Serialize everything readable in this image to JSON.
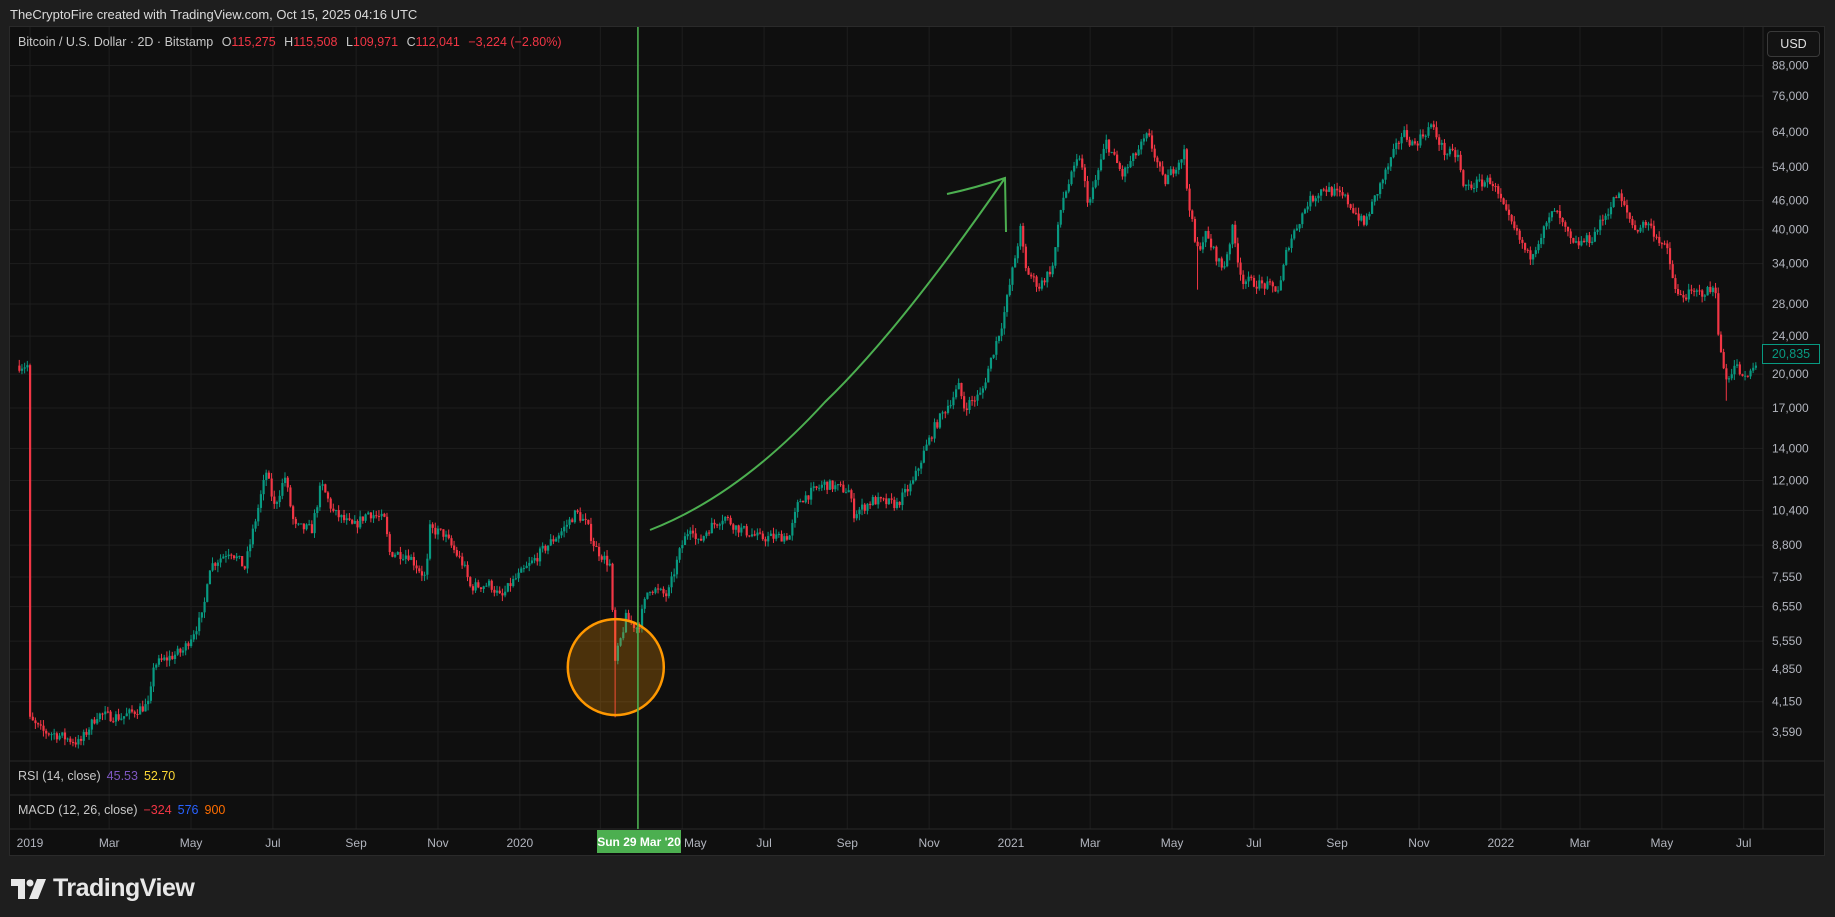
{
  "header": {
    "attribution": "TheCryptoFire created with TradingView.com, Oct 15, 2025 04:16 UTC"
  },
  "legend": {
    "symbol": "Bitcoin / U.S. Dollar · 2D · Bitstamp",
    "open_label": "O",
    "open": "115,275",
    "high_label": "H",
    "high": "115,508",
    "low_label": "L",
    "low": "109,971",
    "close_label": "C",
    "close": "112,041",
    "change": "−3,224 (−2.80%)"
  },
  "currency_button": "USD",
  "current_price_label": "20,835",
  "indicators": {
    "rsi": {
      "label": "RSI (14, close)",
      "v1": "45.53",
      "v2": "52.70"
    },
    "macd": {
      "label": "MACD (12, 26, close)",
      "v1": "−324",
      "v2": "576",
      "v3": "900"
    }
  },
  "crosshair_date": "Sun 29 Mar '20",
  "footer_logo": "TradingView",
  "colors": {
    "up": "#089981",
    "down": "#f23645",
    "annotation_green": "#4caf50",
    "circle": "#ff9800"
  },
  "chart_data": {
    "type": "candlestick",
    "title": "Bitcoin / U.S. Dollar · 2D · Bitstamp",
    "scale": "log",
    "ylim": [
      3300,
      92000
    ],
    "y_ticks": [
      "88,000",
      "76,000",
      "64,000",
      "54,000",
      "46,000",
      "40,000",
      "34,000",
      "28,000",
      "24,000",
      "20,000",
      "17,000",
      "14,000",
      "12,000",
      "10,400",
      "8,800",
      "7,550",
      "6,550",
      "5,550",
      "4,850",
      "4,150",
      "3,590"
    ],
    "x_ticks": [
      [
        "2019-01-01",
        "2019"
      ],
      [
        "2019-03-01",
        "Mar"
      ],
      [
        "2019-05-01",
        "May"
      ],
      [
        "2019-07-01",
        "Jul"
      ],
      [
        "2019-09-01",
        "Sep"
      ],
      [
        "2019-11-01",
        "Nov"
      ],
      [
        "2020-01-01",
        "2020"
      ],
      [
        "2020-03-01",
        "Mar"
      ],
      [
        "2020-05-01",
        "May"
      ],
      [
        "2020-07-01",
        "Jul"
      ],
      [
        "2020-09-01",
        "Sep"
      ],
      [
        "2020-11-01",
        "Nov"
      ],
      [
        "2021-01-01",
        "2021"
      ],
      [
        "2021-03-01",
        "Mar"
      ],
      [
        "2021-05-01",
        "May"
      ],
      [
        "2021-07-01",
        "Jul"
      ],
      [
        "2021-09-01",
        "Sep"
      ],
      [
        "2021-11-01",
        "Nov"
      ],
      [
        "2022-01-01",
        "2022"
      ],
      [
        "2022-03-01",
        "Mar"
      ],
      [
        "2022-05-01",
        "May"
      ],
      [
        "2022-07-01",
        "Jul"
      ]
    ],
    "x_range": [
      "2018-12-25",
      "2022-08-06"
    ],
    "candle_interval_days": 2,
    "close_anchors": [
      [
        "2019-01-01",
        3800
      ],
      [
        "2019-01-10",
        3600
      ],
      [
        "2019-01-20",
        3550
      ],
      [
        "2019-02-07",
        3400
      ],
      [
        "2019-02-20",
        3900
      ],
      [
        "2019-03-10",
        3850
      ],
      [
        "2019-03-31",
        4100
      ],
      [
        "2019-04-03",
        4950
      ],
      [
        "2019-04-25",
        5300
      ],
      [
        "2019-05-10",
        6300
      ],
      [
        "2019-05-14",
        7900
      ],
      [
        "2019-05-30",
        8600
      ],
      [
        "2019-06-10",
        7900
      ],
      [
        "2019-06-26",
        12500
      ],
      [
        "2019-07-02",
        10600
      ],
      [
        "2019-07-10",
        12200
      ],
      [
        "2019-07-17",
        9600
      ],
      [
        "2019-07-30",
        9500
      ],
      [
        "2019-08-06",
        11800
      ],
      [
        "2019-08-15",
        10300
      ],
      [
        "2019-08-30",
        9600
      ],
      [
        "2019-09-10",
        10300
      ],
      [
        "2019-09-23",
        9900
      ],
      [
        "2019-09-25",
        8500
      ],
      [
        "2019-10-10",
        8400
      ],
      [
        "2019-10-23",
        7500
      ],
      [
        "2019-10-26",
        9500
      ],
      [
        "2019-11-05",
        9300
      ],
      [
        "2019-11-20",
        8000
      ],
      [
        "2019-11-25",
        7200
      ],
      [
        "2019-12-10",
        7300
      ],
      [
        "2019-12-18",
        6800
      ],
      [
        "2019-12-25",
        7300
      ],
      [
        "2020-01-10",
        8100
      ],
      [
        "2020-01-20",
        8700
      ],
      [
        "2020-02-01",
        9400
      ],
      [
        "2020-02-12",
        10300
      ],
      [
        "2020-02-20",
        9700
      ],
      [
        "2020-02-26",
        8700
      ],
      [
        "2020-03-08",
        8000
      ],
      [
        "2020-03-12",
        5000
      ],
      [
        "2020-03-14",
        5300
      ],
      [
        "2020-03-20",
        6200
      ],
      [
        "2020-03-29",
        5900
      ],
      [
        "2020-04-06",
        7200
      ],
      [
        "2020-04-20",
        6900
      ],
      [
        "2020-04-30",
        8700
      ],
      [
        "2020-05-08",
        9800
      ],
      [
        "2020-05-12",
        8800
      ],
      [
        "2020-05-20",
        9500
      ],
      [
        "2020-06-01",
        10100
      ],
      [
        "2020-06-10",
        9600
      ],
      [
        "2020-06-28",
        9100
      ],
      [
        "2020-07-20",
        9200
      ],
      [
        "2020-07-27",
        10900
      ],
      [
        "2020-08-15",
        11800
      ],
      [
        "2020-09-03",
        11400
      ],
      [
        "2020-09-05",
        10200
      ],
      [
        "2020-09-20",
        10900
      ],
      [
        "2020-10-08",
        10700
      ],
      [
        "2020-10-20",
        11900
      ],
      [
        "2020-10-27",
        13500
      ],
      [
        "2020-11-05",
        15500
      ],
      [
        "2020-11-24",
        19000
      ],
      [
        "2020-11-26",
        17000
      ],
      [
        "2020-12-10",
        18200
      ],
      [
        "2020-12-16",
        21000
      ],
      [
        "2020-12-26",
        26000
      ],
      [
        "2021-01-08",
        40000
      ],
      [
        "2021-01-12",
        33000
      ],
      [
        "2021-01-22",
        30500
      ],
      [
        "2021-02-01",
        33500
      ],
      [
        "2021-02-08",
        46000
      ],
      [
        "2021-02-21",
        57000
      ],
      [
        "2021-02-28",
        45000
      ],
      [
        "2021-03-13",
        61000
      ],
      [
        "2021-03-25",
        52000
      ],
      [
        "2021-04-13",
        63000
      ],
      [
        "2021-04-25",
        50000
      ],
      [
        "2021-05-10",
        58000
      ],
      [
        "2021-05-12",
        49000
      ],
      [
        "2021-05-19",
        36000
      ],
      [
        "2021-05-26",
        39000
      ],
      [
        "2021-06-08",
        33000
      ],
      [
        "2021-06-15",
        40000
      ],
      [
        "2021-06-22",
        31500
      ],
      [
        "2021-07-20",
        30000
      ],
      [
        "2021-07-26",
        37000
      ],
      [
        "2021-08-10",
        45500
      ],
      [
        "2021-08-22",
        49000
      ],
      [
        "2021-09-07",
        46500
      ],
      [
        "2021-09-21",
        41000
      ],
      [
        "2021-10-01",
        48000
      ],
      [
        "2021-10-20",
        64000
      ],
      [
        "2021-10-28",
        60000
      ],
      [
        "2021-11-10",
        66000
      ],
      [
        "2021-11-20",
        58000
      ],
      [
        "2021-11-30",
        57000
      ],
      [
        "2021-12-04",
        49000
      ],
      [
        "2021-12-25",
        50800
      ],
      [
        "2022-01-05",
        43000
      ],
      [
        "2022-01-22",
        35000
      ],
      [
        "2022-02-10",
        44000
      ],
      [
        "2022-02-24",
        37000
      ],
      [
        "2022-03-10",
        38500
      ],
      [
        "2022-03-29",
        47500
      ],
      [
        "2022-04-11",
        40000
      ],
      [
        "2022-04-20",
        41500
      ],
      [
        "2022-05-05",
        36000
      ],
      [
        "2022-05-12",
        29000
      ],
      [
        "2022-06-05",
        29800
      ],
      [
        "2022-06-10",
        30000
      ],
      [
        "2022-06-13",
        22500
      ],
      [
        "2022-06-18",
        19500
      ],
      [
        "2022-06-25",
        21000
      ],
      [
        "2022-07-01",
        19300
      ],
      [
        "2022-07-10",
        20835
      ]
    ],
    "extreme_lows": [
      [
        "2020-03-12",
        3850
      ],
      [
        "2021-05-19",
        30000
      ],
      [
        "2022-06-18",
        17600
      ]
    ],
    "annotations": {
      "vertical_line_date": "2020-03-29",
      "circle_center": [
        "2020-03-14",
        4900
      ],
      "arrow": "curved up-trend arrow from Apr 2020 to Jan 2021"
    }
  }
}
